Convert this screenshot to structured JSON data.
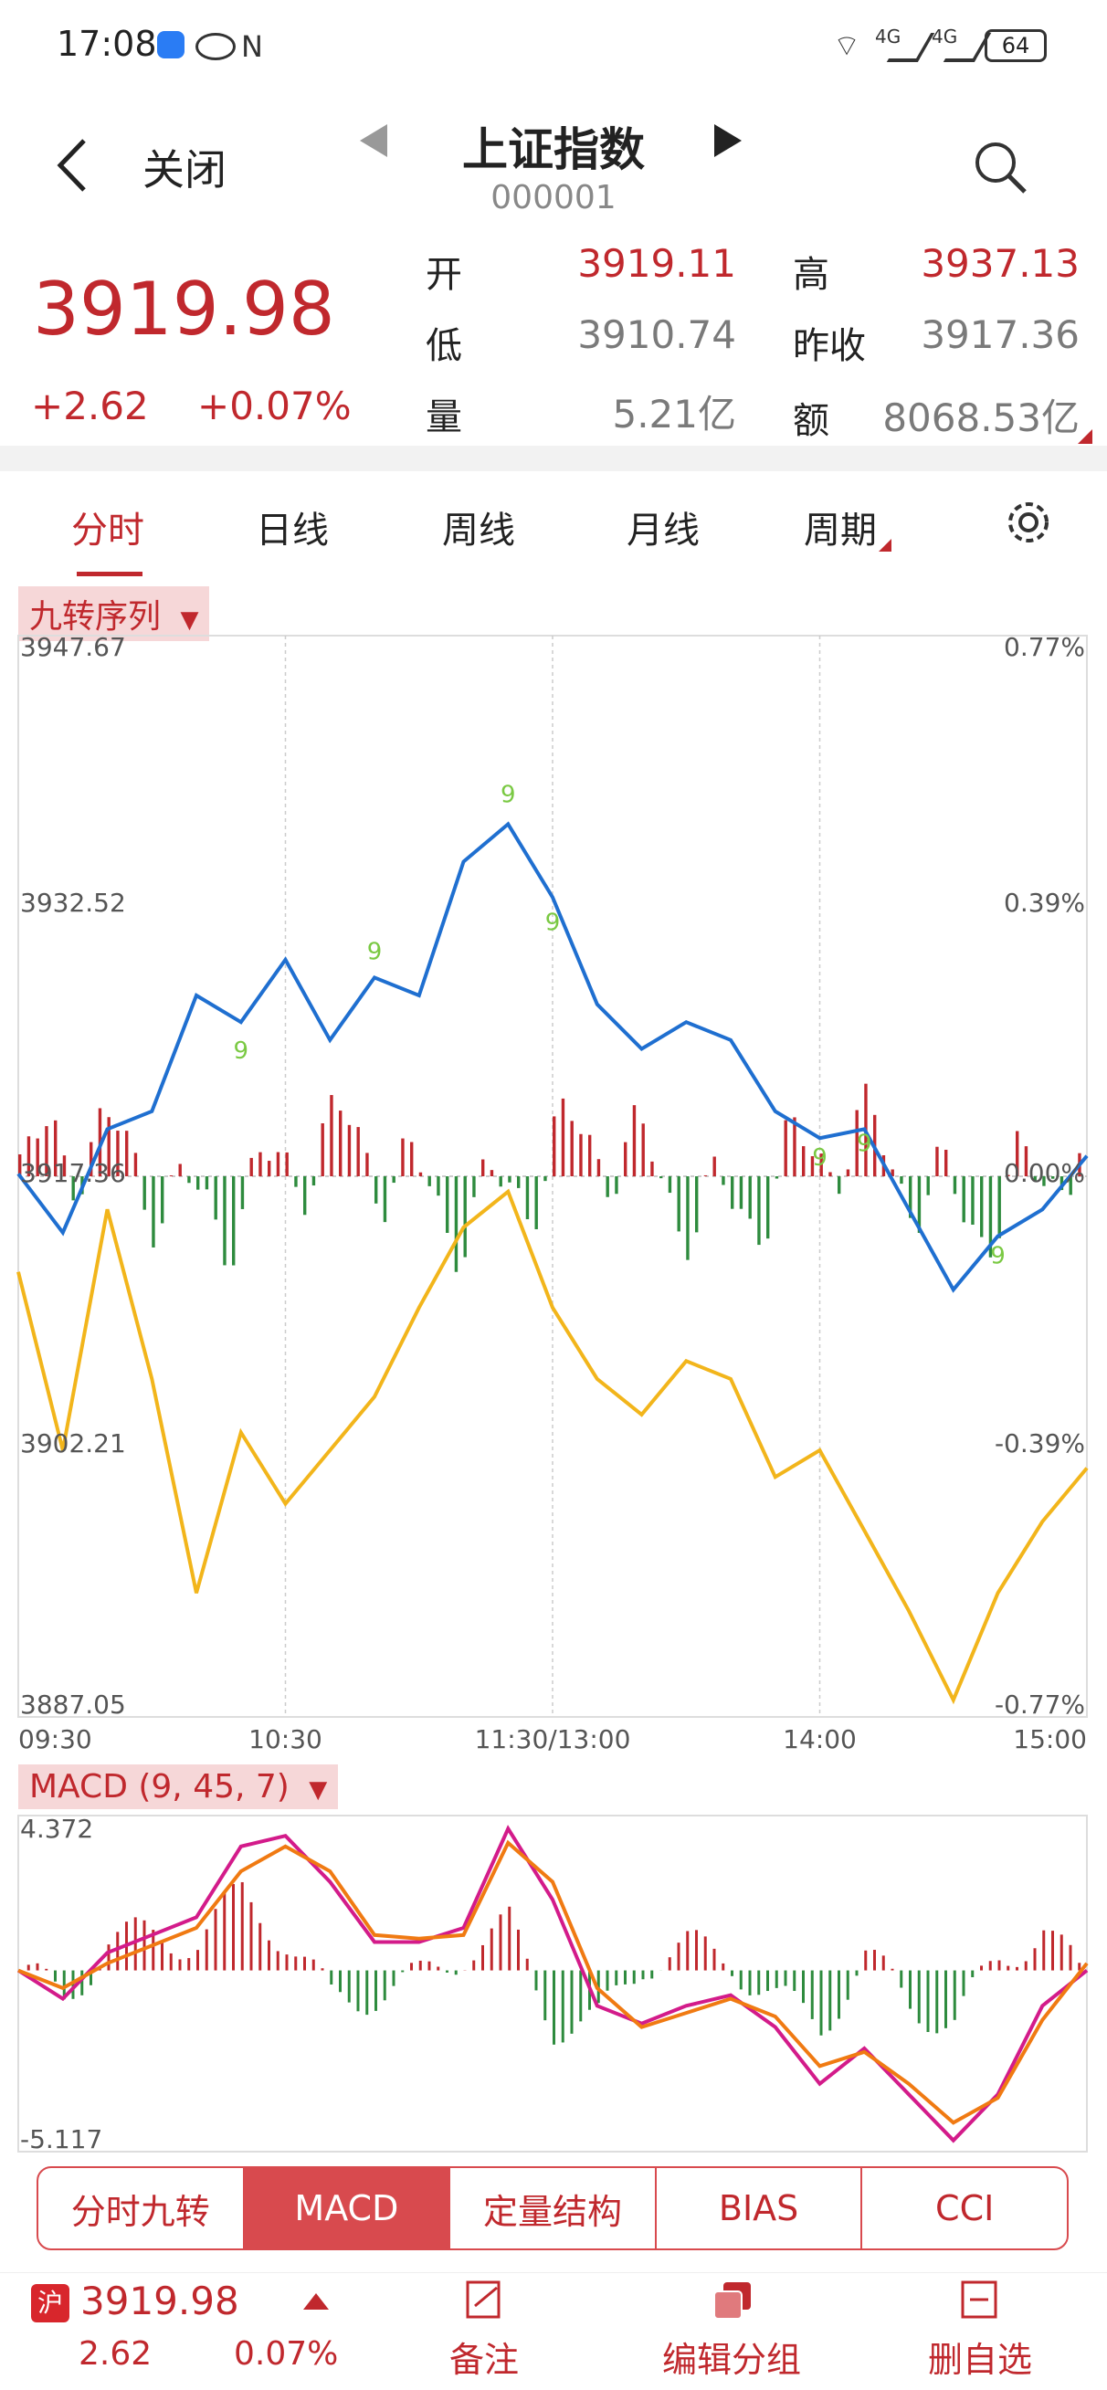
{
  "status": {
    "time": "17:08",
    "battery": "64",
    "net1": "4G",
    "net2": "4G"
  },
  "header": {
    "close_label": "关闭",
    "title": "上证指数",
    "code": "000001"
  },
  "quote": {
    "price": "3919.98",
    "change": "+2.62",
    "change_pct": "+0.07%",
    "open_label": "开",
    "open": "3919.11",
    "high_label": "高",
    "high": "3937.13",
    "low_label": "低",
    "low": "3910.74",
    "prev_label": "昨收",
    "prev": "3917.36",
    "vol_label": "量",
    "vol": "5.21亿",
    "amt_label": "额",
    "amt": "8068.53亿"
  },
  "tabs": [
    "分时",
    "日线",
    "周线",
    "月线",
    "周期"
  ],
  "indicator_selector": "九转序列",
  "macd_selector": "MACD (9, 45, 7)",
  "buttons": [
    "分时九转",
    "MACD",
    "定量结构",
    "BIAS",
    "CCI"
  ],
  "bottom": {
    "market_tag": "沪",
    "price": "3919.98",
    "change": "2.62",
    "change_pct": "0.07%",
    "note_label": "备注",
    "edit_group_label": "编辑分组",
    "delete_label": "删自选"
  },
  "colors": {
    "up": "#c0282d",
    "down": "#2e8b3e",
    "price_line": "#1f6fd0",
    "avg_line": "#f2b51b",
    "dif_line": "#d31b8a",
    "dea_line": "#f07a12",
    "nine_marker": "#7ac943",
    "dots": "#e020e0"
  },
  "chart_data": [
    {
      "type": "line",
      "x_ticks": [
        "09:30",
        "10:30",
        "11:30/13:00",
        "14:00",
        "15:00"
      ],
      "y_left_ticks": [
        "3947.67",
        "3932.52",
        "3917.36",
        "3902.21",
        "3887.05"
      ],
      "y_right_ticks": [
        "0.77%",
        "0.39%",
        "0.00%",
        "-0.39%",
        "-0.77%"
      ],
      "ylim": [
        3887.05,
        3947.67
      ],
      "nine_labels": [
        "9",
        "9",
        "9",
        "9",
        "9",
        "9",
        "9"
      ],
      "series": [
        {
          "x": [
            "09:30",
            "09:40",
            "09:50",
            "10:00",
            "10:10",
            "10:20",
            "10:30",
            "10:40",
            "10:50",
            "11:00",
            "11:10",
            "11:20",
            "11:30",
            "13:10",
            "13:20",
            "13:30",
            "13:40",
            "13:50",
            "14:00",
            "14:10",
            "14:20",
            "14:30",
            "14:40",
            "14:50",
            "15:00"
          ],
          "values": [
            3917.5,
            3914.2,
            3920.0,
            3921.0,
            3927.5,
            3926.0,
            3929.5,
            3925.0,
            3928.5,
            3927.5,
            3935.0,
            3937.1,
            3933.0,
            3927.0,
            3924.5,
            3926.0,
            3925.0,
            3921.0,
            3919.5,
            3920.0,
            3915.5,
            3911.0,
            3914.0,
            3915.5,
            3918.5
          ]
        },
        {
          "x": [
            "09:30",
            "09:40",
            "09:50",
            "10:00",
            "10:10",
            "10:20",
            "10:30",
            "10:40",
            "10:50",
            "11:00",
            "11:10",
            "11:20",
            "11:30",
            "13:10",
            "13:20",
            "13:30",
            "13:40",
            "13:50",
            "14:00",
            "14:10",
            "14:20",
            "14:30",
            "14:40",
            "14:50",
            "15:00"
          ],
          "values": [
            3912.0,
            3902.0,
            3915.5,
            3906.0,
            3894.0,
            3903.0,
            3899.0,
            3902.0,
            3905.0,
            3910.0,
            3914.5,
            3916.5,
            3910.0,
            3906.0,
            3904.0,
            3907.0,
            3906.0,
            3900.5,
            3902.0,
            3897.5,
            3893.0,
            3888.0,
            3894.0,
            3898.0,
            3901.0
          ]
        }
      ]
    },
    {
      "type": "line",
      "y_ticks": [
        "4.372",
        "-5.117"
      ],
      "ylim": [
        -5.117,
        4.372
      ],
      "series": [
        {
          "x": [
            "09:30",
            "09:40",
            "09:50",
            "10:00",
            "10:10",
            "10:20",
            "10:30",
            "10:40",
            "10:50",
            "11:00",
            "11:10",
            "11:20",
            "11:30",
            "13:10",
            "13:20",
            "13:30",
            "13:40",
            "13:50",
            "14:00",
            "14:10",
            "14:20",
            "14:30",
            "14:40",
            "14:50",
            "15:00"
          ],
          "values": [
            0.0,
            -0.8,
            0.5,
            1.0,
            1.5,
            3.5,
            3.8,
            2.5,
            0.8,
            0.8,
            1.2,
            4.0,
            2.0,
            -1.0,
            -1.5,
            -1.0,
            -0.7,
            -1.6,
            -3.2,
            -2.2,
            -3.5,
            -4.8,
            -3.5,
            -1.0,
            0.0
          ]
        },
        {
          "x": [
            "09:30",
            "09:40",
            "09:50",
            "10:00",
            "10:10",
            "10:20",
            "10:30",
            "10:40",
            "10:50",
            "11:00",
            "11:10",
            "11:20",
            "11:30",
            "13:10",
            "13:20",
            "13:30",
            "13:40",
            "13:50",
            "14:00",
            "14:10",
            "14:20",
            "14:30",
            "14:40",
            "14:50",
            "15:00"
          ],
          "values": [
            0.0,
            -0.5,
            0.2,
            0.7,
            1.2,
            2.8,
            3.5,
            2.8,
            1.0,
            0.9,
            1.0,
            3.6,
            2.5,
            -0.5,
            -1.6,
            -1.2,
            -0.8,
            -1.3,
            -2.7,
            -2.3,
            -3.2,
            -4.3,
            -3.6,
            -1.4,
            0.2
          ]
        }
      ]
    }
  ]
}
